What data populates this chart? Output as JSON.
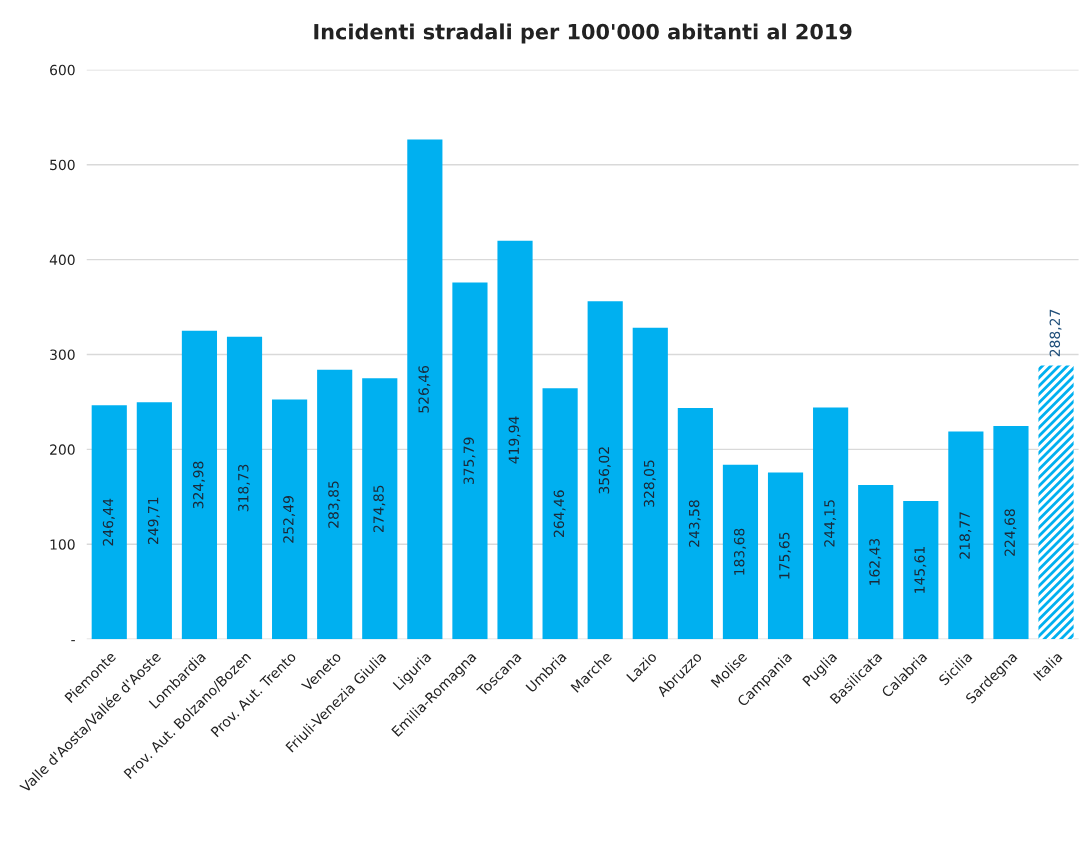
{
  "chart_data": {
    "type": "bar",
    "title": "Incidenti stradali per 100'000 abitanti al 2019",
    "categories": [
      "Piemonte",
      "Valle d'Aosta/Vallée d'Aoste",
      "Lombardia",
      "Prov. Aut. Bolzano/Bozen",
      "Prov. Aut. Trento",
      "Veneto",
      "Friuli-Venezia Giulia",
      "Liguria",
      "Emilia-Romagna",
      "Toscana",
      "Umbria",
      "Marche",
      "Lazio",
      "Abruzzo",
      "Molise",
      "Campania",
      "Puglia",
      "Basilicata",
      "Calabria",
      "Sicilia",
      "Sardegna",
      "Italia"
    ],
    "series": [
      {
        "color": "#00b0f0",
        "values": [
          246.44,
          249.71,
          324.98,
          318.73,
          252.49,
          283.85,
          274.85,
          526.46,
          375.79,
          419.94,
          264.46,
          356.02,
          328.05,
          243.58,
          183.68,
          175.65,
          244.15,
          162.43,
          145.61,
          218.77,
          224.68,
          null
        ],
        "value_labels": [
          "246,44",
          "249,71",
          "324,98",
          "318,73",
          "252,49",
          "283,85",
          "274,85",
          "526,46",
          "375,79",
          "419,94",
          "264,46",
          "356,02",
          "328,05",
          "243,58",
          "183,68",
          "175,65",
          "244,15",
          "162,43",
          "145,61",
          "218,77",
          "224,68",
          null
        ]
      },
      {
        "color": "#00b0f0",
        "values": [
          null,
          null,
          null,
          null,
          null,
          null,
          null,
          null,
          null,
          null,
          null,
          null,
          null,
          null,
          null,
          null,
          null,
          null,
          null,
          null,
          null,
          288.27
        ],
        "value_labels": [
          null,
          null,
          null,
          null,
          null,
          null,
          null,
          null,
          null,
          null,
          null,
          null,
          null,
          null,
          null,
          null,
          null,
          null,
          null,
          null,
          null,
          "288,27"
        ]
      }
    ],
    "ylim": [
      0,
      600
    ],
    "yticks": [
      {
        "value": 0,
        "label": "-"
      },
      100,
      200,
      300,
      400,
      500,
      600
    ],
    "grid": "y"
  }
}
